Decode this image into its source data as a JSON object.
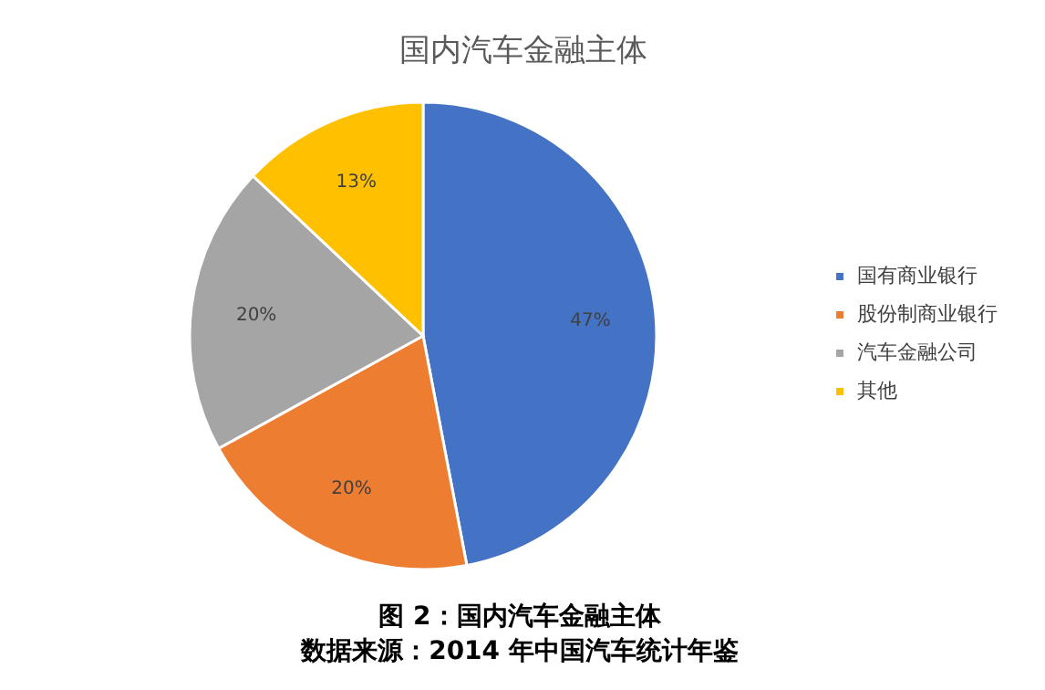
{
  "chart_data": {
    "type": "pie",
    "title": "国内汽车金融主体",
    "categories": [
      "国有商业银行",
      "股份制商业银行",
      "汽车金融公司",
      "其他"
    ],
    "values": [
      47,
      20,
      20,
      13
    ],
    "colors": [
      "#4472c4",
      "#ed7d31",
      "#a5a5a5",
      "#ffc000"
    ],
    "value_labels": [
      "47%",
      "20%",
      "20%",
      "13%"
    ],
    "legend": "right",
    "annotations": [
      "图 2：国内汽车金融主体",
      "数据来源：2014 年中国汽车统计年鉴"
    ]
  }
}
